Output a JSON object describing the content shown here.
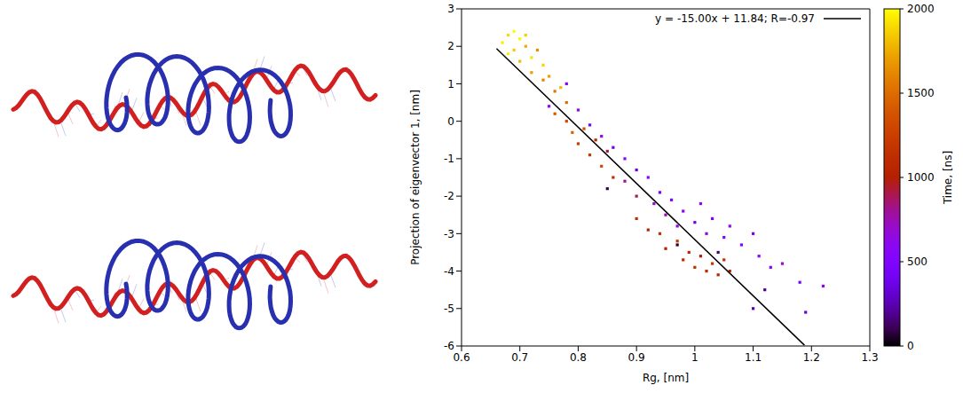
{
  "chart_data": {
    "type": "scatter",
    "x_label": "Rg, [nm]",
    "y_label": "Projection of eigenvector 1, [nm]",
    "xlim": [
      0.6,
      1.3
    ],
    "xticks": [
      0.6,
      0.7,
      0.8,
      0.9,
      1,
      1.1,
      1.2,
      1.3
    ],
    "ylim": [
      -6,
      3
    ],
    "yticks": [
      -6,
      -5,
      -4,
      -3,
      -2,
      -1,
      0,
      1,
      2,
      3
    ],
    "grid": false,
    "legend": "upper right",
    "marker": "square",
    "colorbar": {
      "label": "Time, [ns]",
      "range": [
        0,
        2000
      ],
      "ticks": [
        0,
        500,
        1000,
        1500,
        2000
      ]
    },
    "points": [
      {
        "x": 0.67,
        "y": 2.1,
        "time": 1950
      },
      {
        "x": 0.68,
        "y": 2.3,
        "time": 1900
      },
      {
        "x": 0.69,
        "y": 1.9,
        "time": 1850
      },
      {
        "x": 0.7,
        "y": 2.2,
        "time": 1980
      },
      {
        "x": 0.7,
        "y": 1.6,
        "time": 1800
      },
      {
        "x": 0.71,
        "y": 2.0,
        "time": 1750
      },
      {
        "x": 0.72,
        "y": 1.7,
        "time": 1920
      },
      {
        "x": 0.72,
        "y": 1.3,
        "time": 1700
      },
      {
        "x": 0.73,
        "y": 1.9,
        "time": 1650
      },
      {
        "x": 0.74,
        "y": 1.5,
        "time": 1880
      },
      {
        "x": 0.74,
        "y": 1.1,
        "time": 1600
      },
      {
        "x": 0.75,
        "y": 1.2,
        "time": 1700
      },
      {
        "x": 0.76,
        "y": 0.8,
        "time": 1550
      },
      {
        "x": 0.77,
        "y": 0.9,
        "time": 1800
      },
      {
        "x": 0.78,
        "y": 0.5,
        "time": 1500
      },
      {
        "x": 0.68,
        "y": 1.8,
        "time": 1960
      },
      {
        "x": 0.69,
        "y": 2.4,
        "time": 1990
      },
      {
        "x": 0.71,
        "y": 2.3,
        "time": 1870
      },
      {
        "x": 0.76,
        "y": 0.2,
        "time": 1400
      },
      {
        "x": 0.78,
        "y": 0.0,
        "time": 1300
      },
      {
        "x": 0.79,
        "y": -0.3,
        "time": 1450
      },
      {
        "x": 0.8,
        "y": -0.6,
        "time": 1250
      },
      {
        "x": 0.81,
        "y": -0.2,
        "time": 1350
      },
      {
        "x": 0.82,
        "y": -0.9,
        "time": 1200
      },
      {
        "x": 0.83,
        "y": -0.5,
        "time": 1100
      },
      {
        "x": 0.84,
        "y": -1.2,
        "time": 1300
      },
      {
        "x": 0.85,
        "y": -0.8,
        "time": 900
      },
      {
        "x": 0.86,
        "y": -1.5,
        "time": 1150
      },
      {
        "x": 0.75,
        "y": 0.4,
        "time": 600
      },
      {
        "x": 0.78,
        "y": 1.0,
        "time": 500
      },
      {
        "x": 0.8,
        "y": 0.3,
        "time": 700
      },
      {
        "x": 0.82,
        "y": -0.1,
        "time": 450
      },
      {
        "x": 0.84,
        "y": -0.4,
        "time": 650
      },
      {
        "x": 0.86,
        "y": -0.7,
        "time": 400
      },
      {
        "x": 0.88,
        "y": -1.0,
        "time": 550
      },
      {
        "x": 0.88,
        "y": -1.6,
        "time": 800
      },
      {
        "x": 0.9,
        "y": -1.3,
        "time": 350
      },
      {
        "x": 0.9,
        "y": -2.0,
        "time": 900
      },
      {
        "x": 0.92,
        "y": -1.5,
        "time": 600
      },
      {
        "x": 0.93,
        "y": -2.2,
        "time": 700
      },
      {
        "x": 0.94,
        "y": -1.9,
        "time": 450
      },
      {
        "x": 0.95,
        "y": -2.5,
        "time": 750
      },
      {
        "x": 0.96,
        "y": -2.1,
        "time": 500
      },
      {
        "x": 0.97,
        "y": -2.8,
        "time": 650
      },
      {
        "x": 0.98,
        "y": -2.4,
        "time": 550
      },
      {
        "x": 1.0,
        "y": -2.7,
        "time": 400
      },
      {
        "x": 1.01,
        "y": -2.2,
        "time": 600
      },
      {
        "x": 1.02,
        "y": -3.0,
        "time": 700
      },
      {
        "x": 1.03,
        "y": -2.6,
        "time": 450
      },
      {
        "x": 1.05,
        "y": -3.1,
        "time": 500
      },
      {
        "x": 1.06,
        "y": -2.8,
        "time": 650
      },
      {
        "x": 1.08,
        "y": -3.3,
        "time": 550
      },
      {
        "x": 1.1,
        "y": -3.0,
        "time": 400
      },
      {
        "x": 1.11,
        "y": -3.6,
        "time": 600
      },
      {
        "x": 1.13,
        "y": -3.9,
        "time": 500
      },
      {
        "x": 1.15,
        "y": -3.8,
        "time": 700
      },
      {
        "x": 1.18,
        "y": -4.3,
        "time": 450
      },
      {
        "x": 1.22,
        "y": -4.4,
        "time": 550
      },
      {
        "x": 1.19,
        "y": -5.1,
        "time": 300
      },
      {
        "x": 0.9,
        "y": -2.6,
        "time": 1100
      },
      {
        "x": 0.92,
        "y": -2.9,
        "time": 1050
      },
      {
        "x": 0.94,
        "y": -3.0,
        "time": 1150
      },
      {
        "x": 0.95,
        "y": -3.4,
        "time": 1000
      },
      {
        "x": 0.97,
        "y": -3.2,
        "time": 1200
      },
      {
        "x": 0.98,
        "y": -3.7,
        "time": 1100
      },
      {
        "x": 0.99,
        "y": -3.5,
        "time": 1050
      },
      {
        "x": 1.0,
        "y": -3.9,
        "time": 1150
      },
      {
        "x": 1.01,
        "y": -3.6,
        "time": 1000
      },
      {
        "x": 1.02,
        "y": -4.0,
        "time": 1100
      },
      {
        "x": 1.03,
        "y": -3.8,
        "time": 1200
      },
      {
        "x": 1.04,
        "y": -4.1,
        "time": 1050
      },
      {
        "x": 1.05,
        "y": -3.7,
        "time": 1150
      },
      {
        "x": 1.06,
        "y": -4.0,
        "time": 1000
      },
      {
        "x": 0.85,
        "y": -1.8,
        "time": 100
      },
      {
        "x": 0.97,
        "y": -3.3,
        "time": 50
      },
      {
        "x": 1.04,
        "y": -3.5,
        "time": 150
      },
      {
        "x": 1.12,
        "y": -4.5,
        "time": 200
      },
      {
        "x": 1.1,
        "y": -5.0,
        "time": 250
      }
    ],
    "fit": {
      "label": "y = -15.00x + 11.84; R=-0.97",
      "x": [
        0.66,
        1.188
      ],
      "values": [
        1.94,
        -5.98
      ],
      "color": "#000000",
      "line_style": "solid"
    }
  }
}
